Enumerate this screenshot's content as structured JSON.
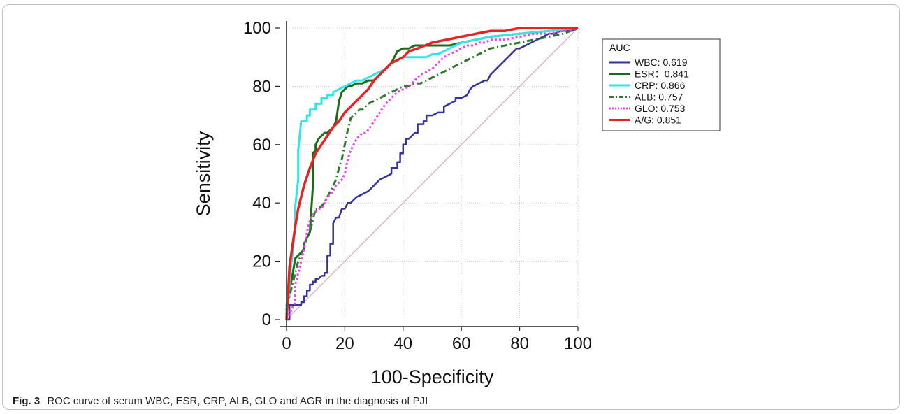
{
  "caption": {
    "label": "Fig. 3",
    "text": "ROC curve of serum WBC, ESR, CRP, ALB, GLO and AGR in the diagnosis of PJI"
  },
  "chart_data": {
    "type": "line",
    "xlabel": "100-Specificity",
    "ylabel": "Sensitivity",
    "xlim": [
      0,
      100
    ],
    "ylim": [
      0,
      100
    ],
    "xticks": [
      0,
      20,
      40,
      60,
      80,
      100
    ],
    "yticks": [
      0,
      20,
      40,
      60,
      80,
      100
    ],
    "grid": true,
    "legend": {
      "title": "AUC",
      "placement": "right"
    },
    "reference_line": {
      "x": [
        0,
        100
      ],
      "y": [
        0,
        100
      ],
      "color": "#e0a0a8"
    },
    "series": [
      {
        "name": "WBC: 0.619",
        "color": "#333399",
        "dash": "solid",
        "x": [
          0,
          1,
          1,
          4,
          5,
          5,
          6,
          6,
          7,
          7,
          8,
          8,
          9,
          9,
          10,
          10,
          11,
          12,
          13,
          13,
          14,
          14,
          15,
          15,
          16,
          16,
          17,
          18,
          19,
          20,
          21,
          22,
          23,
          24,
          26,
          28,
          30,
          32,
          34,
          36,
          36,
          38,
          38,
          39,
          39,
          40,
          40,
          41,
          41,
          42,
          43,
          44,
          45,
          45,
          47,
          47,
          48,
          48,
          50,
          52,
          54,
          54,
          56,
          58,
          58,
          60,
          62,
          63,
          64,
          66,
          66,
          68,
          69,
          70,
          71,
          72,
          74,
          76,
          78,
          79,
          80,
          82,
          84,
          86,
          88,
          90,
          92,
          94,
          96,
          98,
          100
        ],
        "y": [
          0,
          0,
          5,
          5,
          5,
          6,
          6,
          8,
          8,
          10,
          10,
          12,
          12,
          13,
          13,
          14,
          14,
          15,
          15,
          16,
          16,
          22,
          22,
          26,
          26,
          33,
          35,
          35,
          38,
          38,
          40,
          40,
          41,
          42,
          43,
          44,
          46,
          48,
          49,
          50,
          52,
          52,
          54,
          54,
          57,
          57,
          60,
          60,
          62,
          62,
          63,
          64,
          64,
          67,
          67,
          68,
          68,
          70,
          70,
          71,
          71,
          73,
          74,
          75,
          76,
          76,
          77,
          79,
          80,
          81,
          81,
          82,
          82,
          84,
          85,
          86,
          88,
          90,
          92,
          93,
          93,
          94,
          95,
          96,
          97,
          98,
          98,
          99,
          99,
          99,
          100
        ]
      },
      {
        "name": "ESR：0.841",
        "color": "#1a6b1a",
        "dash": "solid",
        "x": [
          0,
          0,
          1,
          2,
          3,
          4,
          5,
          6,
          6,
          7,
          8,
          9,
          9,
          10,
          10,
          11,
          12,
          13,
          14,
          15,
          16,
          17,
          18,
          19,
          20,
          21,
          22,
          24,
          26,
          28,
          30,
          32,
          34,
          36,
          37,
          38,
          40,
          42,
          44,
          48,
          52,
          56,
          60,
          65,
          70,
          80,
          90,
          100
        ],
        "y": [
          0,
          5,
          10,
          15,
          21,
          22,
          23,
          24,
          26,
          28,
          30,
          45,
          57,
          58,
          60,
          62,
          63,
          64,
          64,
          65,
          66,
          68,
          75,
          78,
          79,
          80,
          80,
          81,
          81,
          82,
          82,
          84,
          86,
          88,
          90,
          92,
          93,
          93,
          94,
          94,
          94,
          94,
          95,
          96,
          97,
          98,
          99,
          100
        ],
        "width": 3
      },
      {
        "name": "CRP: 0.866",
        "color": "#33e6e6",
        "dash": "solid",
        "x": [
          0,
          0,
          1,
          1,
          2,
          3,
          3,
          4,
          4,
          5,
          5,
          7,
          7,
          8,
          8,
          10,
          10,
          12,
          12,
          14,
          14,
          16,
          16,
          18,
          20,
          22,
          24,
          26,
          28,
          30,
          32,
          34,
          36,
          38,
          40,
          42,
          44,
          46,
          48,
          50,
          52,
          54,
          56,
          58,
          60,
          65,
          70,
          80,
          90,
          100
        ],
        "y": [
          0,
          5,
          8,
          14,
          22,
          32,
          39,
          48,
          58,
          68,
          68,
          68,
          70,
          70,
          72,
          72,
          74,
          74,
          76,
          76,
          77,
          77,
          78,
          79,
          80,
          81,
          82,
          82,
          83,
          84,
          85,
          86,
          88,
          89,
          90,
          90,
          90,
          90,
          90,
          91,
          91,
          92,
          93,
          94,
          95,
          96,
          97,
          98,
          99,
          100
        ],
        "width": 3
      },
      {
        "name": "ALB: 0.757",
        "color": "#2e7a2e",
        "dash": "dashdot",
        "x": [
          0,
          0,
          1,
          2,
          3,
          4,
          5,
          6,
          7,
          8,
          9,
          10,
          11,
          12,
          13,
          14,
          15,
          16,
          17,
          18,
          19,
          20,
          21,
          22,
          23,
          24,
          25,
          26,
          27,
          28,
          30,
          32,
          34,
          36,
          38,
          40,
          42,
          44,
          46,
          48,
          50,
          52,
          54,
          56,
          58,
          60,
          62,
          64,
          66,
          68,
          70,
          75,
          80,
          85,
          90,
          95,
          100
        ],
        "y": [
          0,
          4,
          8,
          12,
          16,
          20,
          22,
          25,
          28,
          30,
          34,
          38,
          38,
          39,
          40,
          42,
          44,
          46,
          48,
          52,
          55,
          60,
          65,
          69,
          70,
          71,
          72,
          72,
          73,
          74,
          75,
          76,
          77,
          78,
          79,
          80,
          80,
          81,
          81,
          82,
          83,
          84,
          85,
          86,
          87,
          88,
          89,
          90,
          91,
          92,
          93,
          94,
          95,
          96,
          97,
          98,
          100
        ],
        "width": 3
      },
      {
        "name": "GLO: 0.753",
        "color": "#ee44ee",
        "dash": "dot",
        "x": [
          0,
          1,
          2,
          3,
          3,
          4,
          5,
          6,
          7,
          8,
          9,
          10,
          11,
          12,
          13,
          14,
          15,
          16,
          17,
          18,
          19,
          20,
          21,
          22,
          23,
          24,
          25,
          26,
          27,
          28,
          30,
          32,
          34,
          36,
          38,
          40,
          42,
          44,
          46,
          48,
          50,
          52,
          54,
          56,
          58,
          60,
          62,
          64,
          66,
          68,
          70,
          75,
          80,
          85,
          90,
          95,
          100
        ],
        "y": [
          0,
          2,
          4,
          6,
          12,
          16,
          20,
          24,
          30,
          34,
          36,
          37,
          38,
          38,
          40,
          42,
          43,
          44,
          46,
          47,
          48,
          50,
          55,
          58,
          60,
          62,
          63,
          64,
          64,
          65,
          68,
          71,
          74,
          76,
          78,
          79,
          80,
          82,
          84,
          85,
          86,
          88,
          90,
          91,
          92,
          93,
          94,
          94,
          95,
          95,
          96,
          96,
          97,
          98,
          98,
          99,
          100
        ],
        "width": 3
      },
      {
        "name": "A/G:  0.851",
        "color": "#e62222",
        "dash": "solid",
        "x": [
          0,
          0.5,
          1,
          2,
          3,
          4,
          6,
          8,
          10,
          12,
          14,
          16,
          18,
          20,
          22,
          24,
          26,
          28,
          30,
          32,
          34,
          36,
          38,
          40,
          42,
          45,
          50,
          55,
          60,
          65,
          70,
          75,
          80,
          85,
          90,
          95,
          100
        ],
        "y": [
          0,
          8,
          18,
          25,
          32,
          38,
          46,
          52,
          57,
          60,
          63,
          66,
          68,
          71,
          73,
          75,
          77,
          79,
          82,
          84,
          86,
          88,
          89,
          90,
          92,
          93,
          95,
          96,
          97,
          98,
          99,
          99,
          100,
          100,
          100,
          100,
          100
        ],
        "width": 3.5
      }
    ]
  }
}
